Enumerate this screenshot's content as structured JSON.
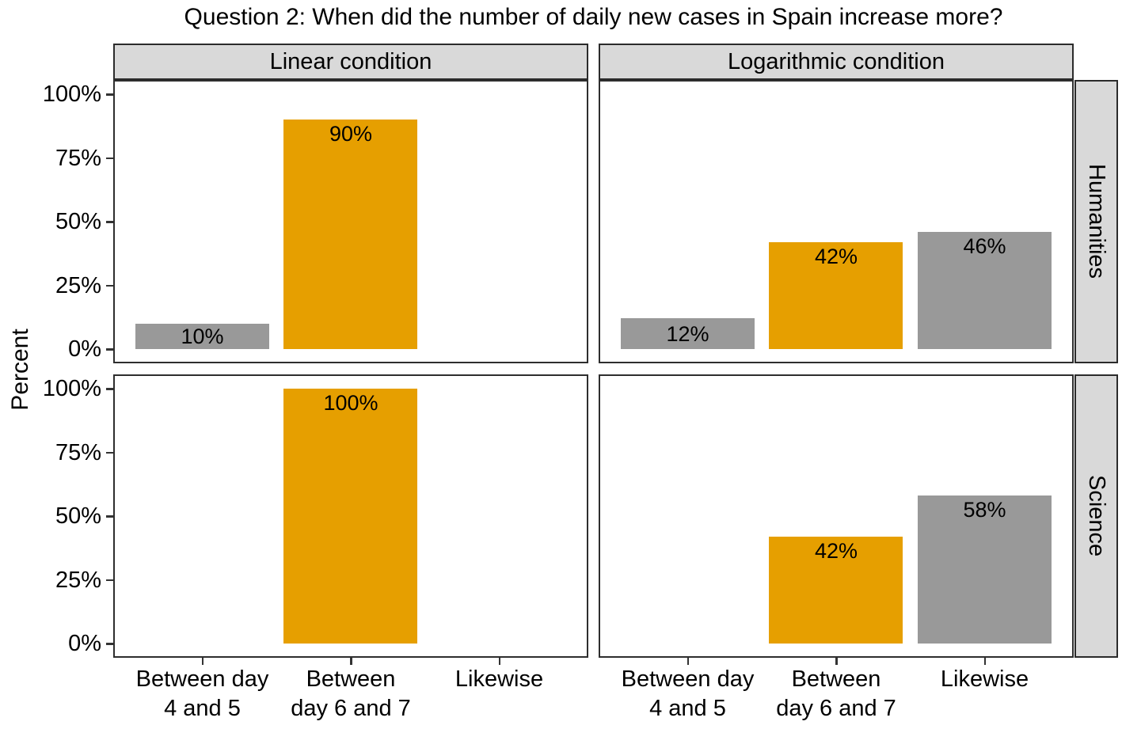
{
  "title": "Question 2: When did the number of daily new cases in Spain increase more?",
  "colors": {
    "bar_orange": "#E69F00",
    "bar_gray": "#999999",
    "strip_background": "#D9D9D9",
    "panel_border": "#2E2E2E",
    "text": "#000000"
  },
  "chart_data": {
    "type": "bar",
    "title": "Question 2: When did the number of daily new cases in Spain increase more?",
    "xlabel": "",
    "ylabel": "Percent",
    "ylim": [
      0,
      100
    ],
    "grid": false,
    "legend": "none",
    "facet_cols": [
      "Linear condition",
      "Logarithmic condition"
    ],
    "facet_rows": [
      "Humanities",
      "Science"
    ],
    "categories": [
      "Between day 4 and 5",
      "Between day 6 and 7",
      "Likewise"
    ],
    "category_label_lines": [
      [
        "Between day",
        "4 and 5"
      ],
      [
        "Between",
        "day 6 and 7"
      ],
      [
        "Likewise"
      ]
    ],
    "bar_colors": [
      "#999999",
      "#E69F00",
      "#999999"
    ],
    "y_ticks": {
      "values": [
        0,
        25,
        50,
        75,
        100
      ],
      "labels": [
        "0%",
        "25%",
        "50%",
        "75%",
        "100%"
      ]
    },
    "panels": [
      {
        "row": "Humanities",
        "col": "Linear condition",
        "values": [
          10,
          90,
          null
        ],
        "labels": [
          "10%",
          "90%",
          null
        ]
      },
      {
        "row": "Humanities",
        "col": "Logarithmic condition",
        "values": [
          12,
          42,
          46
        ],
        "labels": [
          "12%",
          "42%",
          "46%"
        ]
      },
      {
        "row": "Science",
        "col": "Linear condition",
        "values": [
          null,
          100,
          null
        ],
        "labels": [
          null,
          "100%",
          null
        ]
      },
      {
        "row": "Science",
        "col": "Logarithmic condition",
        "values": [
          null,
          42,
          58
        ],
        "labels": [
          null,
          "42%",
          "58%"
        ]
      }
    ]
  }
}
